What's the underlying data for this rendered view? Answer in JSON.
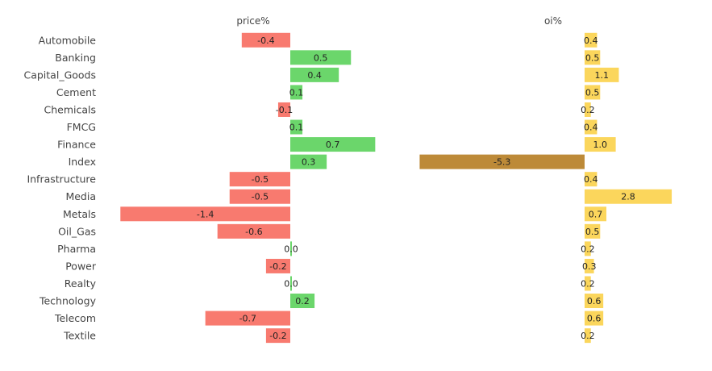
{
  "chart_data": {
    "type": "bar",
    "orientation": "horizontal",
    "categories": [
      "Automobile",
      "Banking",
      "Capital_Goods",
      "Cement",
      "Chemicals",
      "FMCG",
      "Finance",
      "Index",
      "Infrastructure",
      "Media",
      "Metals",
      "Oil_Gas",
      "Pharma",
      "Power",
      "Realty",
      "Technology",
      "Telecom",
      "Textile"
    ],
    "panels": [
      {
        "title": "price%",
        "values": [
          -0.4,
          0.5,
          0.4,
          0.1,
          -0.1,
          0.1,
          0.7,
          0.3,
          -0.5,
          -0.5,
          -1.4,
          -0.6,
          0.0,
          -0.2,
          0.0,
          0.2,
          -0.7,
          -0.2
        ],
        "labels": [
          "-0.4",
          "0.5",
          "0.4",
          "0.1",
          "-0.1",
          "0.1",
          "0.7",
          "0.3",
          "-0.5",
          "-0.5",
          "-1.4",
          "-0.6",
          "0.0",
          "-0.2",
          "0.0",
          "0.2",
          "-0.7",
          "-0.2"
        ],
        "xlim": [
          -1.4,
          1.2
        ],
        "colors": {
          "positive": "#6bd66b",
          "negative": "#f87a6f"
        }
      },
      {
        "title": "oi%",
        "values": [
          0.4,
          0.5,
          1.1,
          0.5,
          0.2,
          0.4,
          1.0,
          -5.3,
          0.4,
          2.8,
          0.7,
          0.5,
          0.2,
          0.3,
          0.2,
          0.6,
          0.6,
          0.2
        ],
        "labels": [
          "0.4",
          "0.5",
          "1.1",
          "0.5",
          "0.2",
          "0.4",
          "1.0",
          "-5.3",
          "0.4",
          "2.8",
          "0.7",
          "0.5",
          "0.2",
          "0.3",
          "0.2",
          "0.6",
          "0.6",
          "0.2"
        ],
        "xlim": [
          -5.3,
          3.3
        ],
        "colors": {
          "positive": "#fbd65c",
          "negative": "#bd8a38"
        }
      }
    ],
    "grid": false,
    "legend": "none"
  }
}
